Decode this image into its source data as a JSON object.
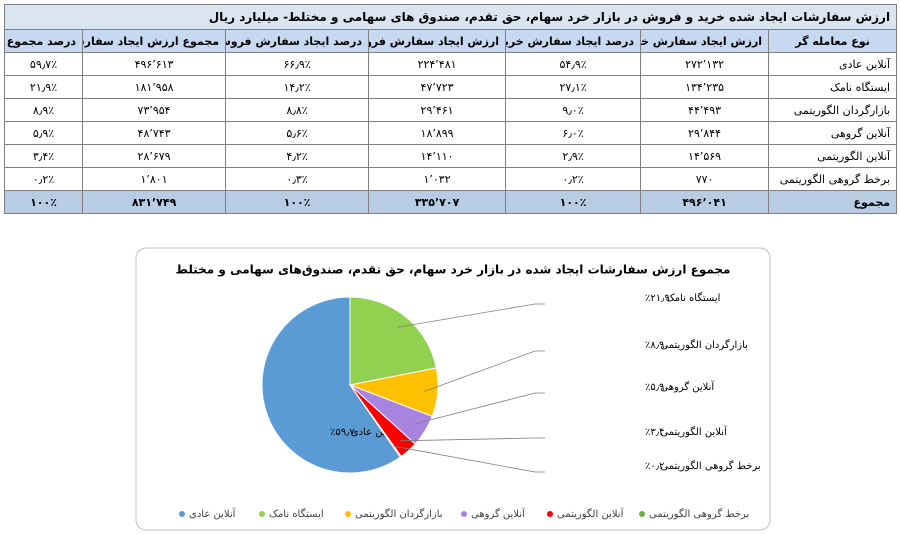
{
  "table": {
    "title": "ارزش سفارشات ایجاد شده خرید و فروش در بازار خرد سهام، حق تقدم، صندوق های سهامی و مختلط- میلیارد ریال",
    "columns": [
      "نوع معامله گر",
      "ارزش ایجاد سفارش خرید",
      "درصد ایجاد سفارش خرید",
      "ارزش ایجاد سفارش فروش",
      "درصد ایجاد سفارش فروش",
      "مجموع ارزش ایجاد سفارش",
      "درصد مجموع"
    ],
    "rows": [
      [
        "آنلاین عادی",
        "۲۷۲٬۱۳۲",
        "۵۴٫۹٪",
        "۲۲۴٬۴۸۱",
        "۶۶٫۹٪",
        "۴۹۶٬۶۱۳",
        "۵۹٫۷٪"
      ],
      [
        "ایستگاه نامک",
        "۱۳۴٬۲۳۵",
        "۲۷٫۱٪",
        "۴۷٬۷۲۳",
        "۱۴٫۲٪",
        "۱۸۱٬۹۵۸",
        "۲۱٫۹٪"
      ],
      [
        "بازارگردان الگوریتمی",
        "۴۴٬۴۹۳",
        "۹٫۰٪",
        "۲۹٬۴۶۱",
        "۸٫۸٪",
        "۷۳٬۹۵۴",
        "۸٫۹٪"
      ],
      [
        "آنلاین گروهی",
        "۲۹٬۸۴۴",
        "۶٫۰٪",
        "۱۸٬۸۹۹",
        "۵٫۶٪",
        "۴۸٬۷۴۳",
        "۵٫۹٪"
      ],
      [
        "آنلاین الگوریتمی",
        "۱۴٬۵۶۹",
        "۲٫۹٪",
        "۱۴٬۱۱۰",
        "۴٫۲٪",
        "۲۸٬۶۷۹",
        "۳٫۴٪"
      ],
      [
        "برخط گروهی الگوریتمی",
        "۷۷۰",
        "۰٫۲٪",
        "۱٬۰۳۲",
        "۰٫۳٪",
        "۱٬۸۰۱",
        "۰٫۲٪"
      ]
    ],
    "total": [
      "مجموع",
      "۴۹۶٬۰۴۱",
      "۱۰۰٪",
      "۳۳۵٬۷۰۷",
      "۱۰۰٪",
      "۸۳۱٬۷۴۹",
      "۱۰۰٪"
    ]
  },
  "chart_data": {
    "type": "pie",
    "title": "مجموع ارزش سفارشات ایجاد شده در بازار خرد سهام، حق تقدم، صندوق‌های سهامی و مختلط",
    "categories": [
      "آنلاین عادی",
      "ایستگاه نامک",
      "بازارگردان الگوریتمی",
      "آنلاین گروهی",
      "آنلاین الگوریتمی",
      "برخط گروهی الگوریتمی"
    ],
    "values": [
      59.7,
      21.9,
      8.9,
      5.9,
      3.4,
      0.2
    ],
    "value_labels": [
      "۵۹٫۷٪",
      "۲۱٫۹٪",
      "۸٫۹٪",
      "۵٫۹٪",
      "۳٫۴٪",
      "۰٫۲٪"
    ],
    "colors": [
      "#5b9bd5",
      "#92d050",
      "#ffc000",
      "#a983e0",
      "#ff0000",
      "#70ad47"
    ],
    "legend": "bottom"
  }
}
